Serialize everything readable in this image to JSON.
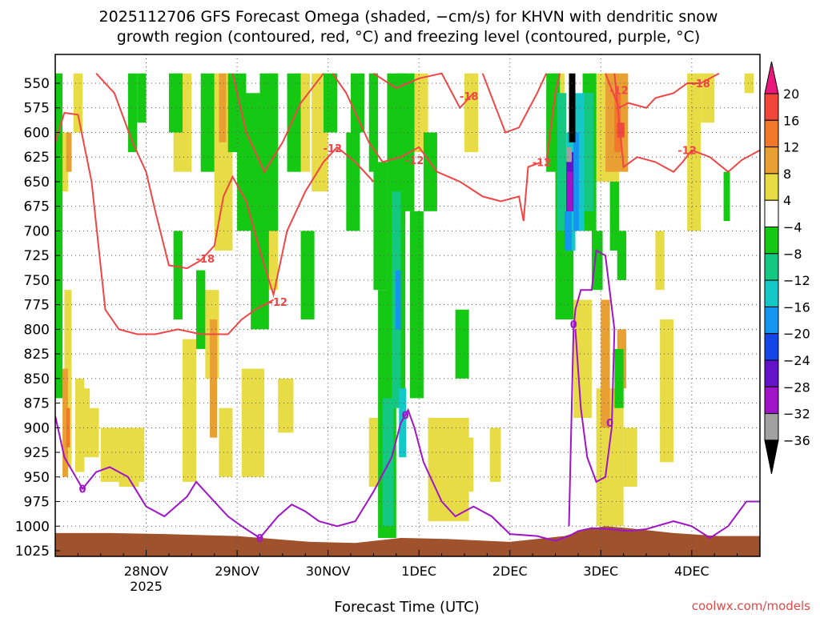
{
  "chart_data": {
    "type": "heatmap",
    "title_line1": "2025112706 GFS Forecast Omega (shaded, −cm/s) for KHVN with dendritic snow",
    "title_line2": "growth region (contoured, red, °C) and freezing level (contoured, purple, °C)",
    "xlabel": "Forecast Time (UTC)",
    "credit": "coolwx.com/models",
    "x_ticks": [
      {
        "label": "28NOV",
        "sub": "2025",
        "t": 1.0
      },
      {
        "label": "29NOV",
        "sub": "",
        "t": 2.0
      },
      {
        "label": "30NOV",
        "sub": "",
        "t": 3.0
      },
      {
        "label": "1DEC",
        "sub": "",
        "t": 4.0
      },
      {
        "label": "2DEC",
        "sub": "",
        "t": 5.0
      },
      {
        "label": "3DEC",
        "sub": "",
        "t": 6.0
      },
      {
        "label": "4DEC",
        "sub": "",
        "t": 7.0
      }
    ],
    "x_range": [
      0.0,
      7.75
    ],
    "y_levels": [
      550,
      575,
      600,
      625,
      650,
      675,
      700,
      725,
      750,
      775,
      800,
      825,
      850,
      875,
      900,
      925,
      950,
      975,
      1000,
      1025
    ],
    "colorbar": {
      "labels": [
        "20",
        "16",
        "12",
        "8",
        "4",
        "−4",
        "−8",
        "−12",
        "−16",
        "−20",
        "−24",
        "−28",
        "−32",
        "−36"
      ],
      "bins": [
        {
          "range": ">20",
          "color": "#e8187c"
        },
        {
          "range": "16 to 20",
          "color": "#f0463c"
        },
        {
          "range": "12 to 16",
          "color": "#f07828"
        },
        {
          "range": "8 to 12",
          "color": "#e8a032"
        },
        {
          "range": "4 to 8",
          "color": "#e8dc46"
        },
        {
          "range": "-4 to 4",
          "color": "#ffffff"
        },
        {
          "range": "-8 to -4",
          "color": "#14c814"
        },
        {
          "range": "-12 to -8",
          "color": "#14c882"
        },
        {
          "range": "-16 to -12",
          "color": "#14c8c8"
        },
        {
          "range": "-20 to -16",
          "color": "#1496f0"
        },
        {
          "range": "-24 to -20",
          "color": "#1446e6"
        },
        {
          "range": "-28 to -24",
          "color": "#6414c8"
        },
        {
          "range": "-32 to -28",
          "color": "#a014c8"
        },
        {
          "range": "-36 to -32",
          "color": "#a0a0a0"
        },
        {
          "range": "<-36",
          "color": "#000000"
        }
      ]
    },
    "contours": {
      "dgz_color": "#f04646",
      "freezing_color": "#a014c8",
      "dgz_labels": [
        {
          "text": "-18",
          "t": 1.65,
          "p": 728
        },
        {
          "text": "-12",
          "t": 2.45,
          "p": 772
        },
        {
          "text": "-12",
          "t": 3.05,
          "p": 616
        },
        {
          "text": "-12",
          "t": 3.95,
          "p": 628
        },
        {
          "text": "-18",
          "t": 4.55,
          "p": 563
        },
        {
          "text": "-12",
          "t": 5.35,
          "p": 630
        },
        {
          "text": "-12",
          "t": 6.2,
          "p": 557
        },
        {
          "text": "-18",
          "t": 7.1,
          "p": 550
        },
        {
          "text": "-12",
          "t": 6.95,
          "p": 618
        }
      ],
      "freezing_labels": [
        {
          "text": "0",
          "t": 0.3,
          "p": 962
        },
        {
          "text": "0",
          "t": 2.25,
          "p": 1012
        },
        {
          "text": "0",
          "t": 3.85,
          "p": 887
        },
        {
          "text": "0",
          "t": 5.7,
          "p": 795
        },
        {
          "text": "0",
          "t": 6.1,
          "p": 895
        }
      ]
    },
    "terrain_color": "#a0522d"
  }
}
